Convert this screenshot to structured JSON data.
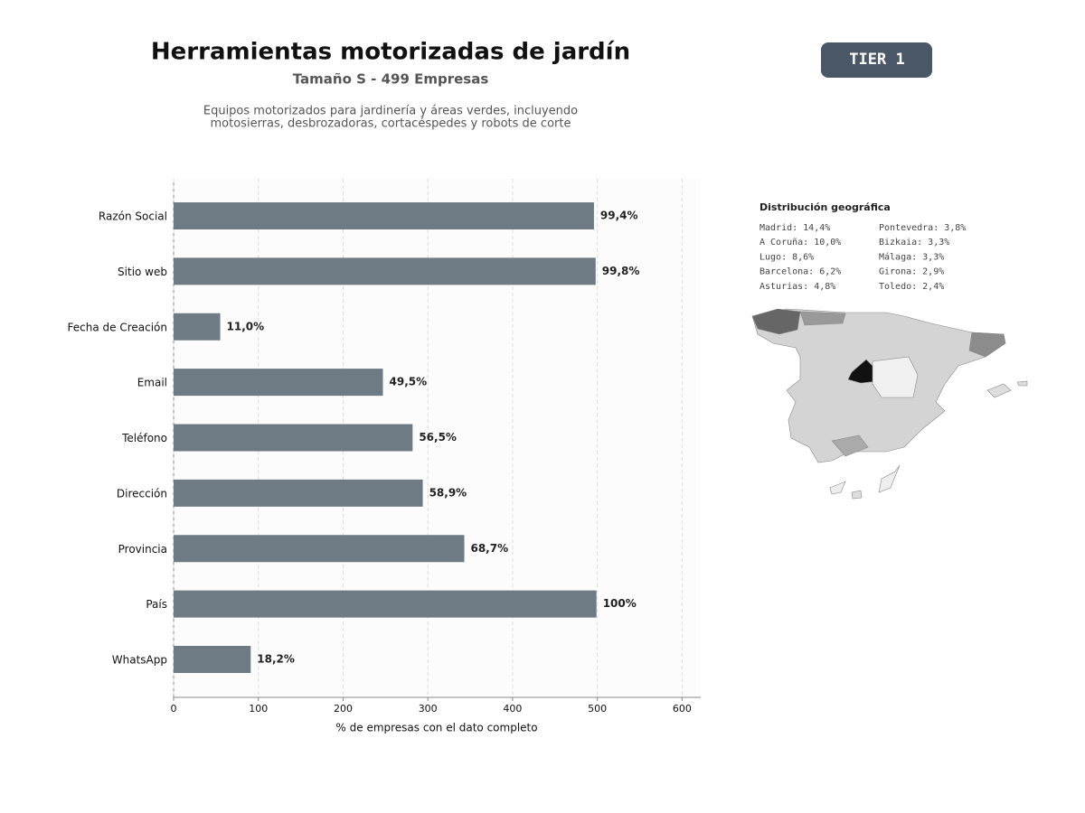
{
  "chart_data": {
    "type": "hbar",
    "title": "Herramientas motorizadas de jardín",
    "subtitle": "Tamaño S - 499 Empresas",
    "description": [
      "Equipos motorizados para jardinería y áreas verdes, incluyendo",
      "motosierras, desbrozadoras, cortacéspedes y robots de corte"
    ],
    "badge": "TIER 1",
    "categories": [
      "Razón Social",
      "Sitio web",
      "Fecha de Creación",
      "Email",
      "Teléfono",
      "Dirección",
      "Provincia",
      "País",
      "WhatsApp"
    ],
    "values": [
      496,
      498,
      55,
      247,
      282,
      294,
      343,
      499,
      91
    ],
    "value_labels": [
      "99,4%",
      "99,8%",
      "11,0%",
      "49,5%",
      "56,5%",
      "58,9%",
      "68,7%",
      "100%",
      "18,2%"
    ],
    "color": "#6e7a84",
    "xlabel": "% de empresas con el dato completo",
    "xlim": [
      0,
      622
    ],
    "xticks": [
      0,
      100,
      200,
      300,
      400,
      500,
      600
    ],
    "grid": true,
    "geo_title": "Distribución geográfica",
    "geo_items": [
      "Madrid: 14,4%",
      "A Coruña: 10,0%",
      "Lugo: 8,6%",
      "Barcelona: 6,2%",
      "Asturias: 4,8%",
      "Pontevedra: 3,8%",
      "Bizkaia: 3,3%",
      "Málaga: 3,3%",
      "Girona: 2,9%",
      "Toledo: 2,4%"
    ]
  }
}
